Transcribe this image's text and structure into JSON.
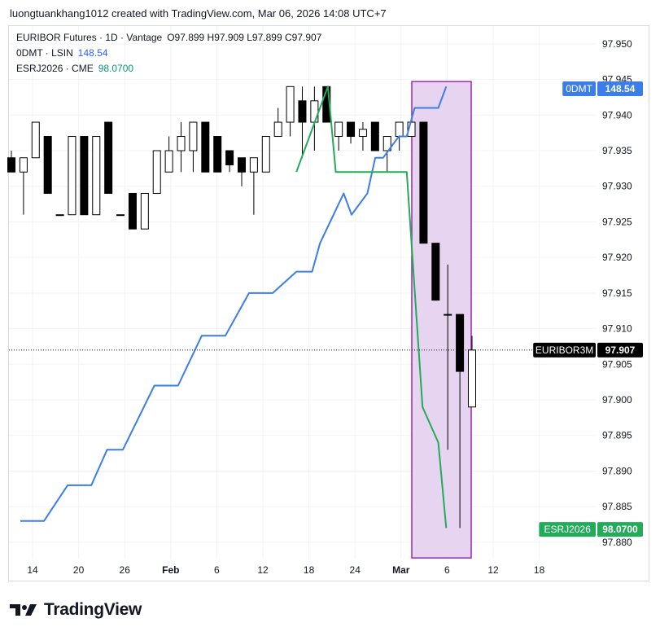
{
  "header": {
    "caption": "luongtuankhang1012 created with TradingView.com, Mar 06, 2026 14:08 UTC+7"
  },
  "legend": [
    {
      "label": "EURIBOR Futures · 1D · Vantage",
      "value": "O97.899  H97.909  L97.899  C97.907",
      "value_color": "#131722"
    },
    {
      "label": "0DMT · LSIN",
      "value": "148.54",
      "value_color": "#2962ff"
    },
    {
      "label": "ESRJ2026 · CME",
      "value": "98.0700",
      "value_color": "#089981"
    }
  ],
  "badges": [
    {
      "symbol": "0DMT",
      "value": "148.54",
      "color": "#3b7de9",
      "price": 97.9437
    },
    {
      "symbol": "EURIBOR3M",
      "value": "97.907",
      "color": "#000000",
      "price": 97.907
    },
    {
      "symbol": "ESRJ2026",
      "value": "98.0700",
      "color": "#22ab58",
      "price": 97.8818
    }
  ],
  "brand": {
    "name": "TradingView",
    "logo_icon": "tradingview-logo-icon"
  },
  "chart_data": {
    "type": "candlestick",
    "title": "",
    "y_axis": {
      "ticks": [
        "97.950",
        "97.945",
        "97.940",
        "97.935",
        "97.930",
        "97.925",
        "97.920",
        "97.915",
        "97.910",
        "97.905",
        "97.900",
        "97.895",
        "97.890",
        "97.885",
        "97.880"
      ],
      "range": [
        97.8777,
        97.9525
      ]
    },
    "x_axis": {
      "ticks": [
        "14",
        "20",
        "26",
        "Feb",
        "6",
        "12",
        "18",
        "24",
        "Mar",
        "6",
        "12",
        "18"
      ],
      "range_dates": [
        "2026-01-10",
        "2026-03-22"
      ]
    },
    "highlight": {
      "from": "2026-02-28",
      "to": "2026-03-06",
      "fill": "#e3cdee",
      "stroke": "#9c27b0",
      "price_top": 97.9447,
      "price_bottom": 97.8778
    },
    "last_price_line": 97.907,
    "candles": [
      {
        "t": "2026-01-10",
        "o": 97.934,
        "h": 97.935,
        "l": 97.932,
        "c": 97.932
      },
      {
        "t": "2026-01-11",
        "o": 97.932,
        "h": 97.934,
        "l": 97.926,
        "c": 97.934
      },
      {
        "t": "2026-01-12",
        "o": 97.934,
        "h": 97.939,
        "l": 97.934,
        "c": 97.939
      },
      {
        "t": "2026-01-13",
        "o": 97.937,
        "h": 97.937,
        "l": 97.929,
        "c": 97.929
      },
      {
        "t": "2026-01-14",
        "o": 97.926,
        "h": 97.926,
        "l": 97.926,
        "c": 97.926
      },
      {
        "t": "2026-01-15",
        "o": 97.926,
        "h": 97.937,
        "l": 97.926,
        "c": 97.937
      },
      {
        "t": "2026-01-16",
        "o": 97.937,
        "h": 97.937,
        "l": 97.926,
        "c": 97.926
      },
      {
        "t": "2026-01-17",
        "o": 97.926,
        "h": 97.937,
        "l": 97.926,
        "c": 97.937
      },
      {
        "t": "2026-01-18",
        "o": 97.939,
        "h": 97.939,
        "l": 97.929,
        "c": 97.929
      },
      {
        "t": "2026-01-19",
        "o": 97.926,
        "h": 97.926,
        "l": 97.926,
        "c": 97.926
      },
      {
        "t": "2026-01-20",
        "o": 97.929,
        "h": 97.929,
        "l": 97.924,
        "c": 97.924
      },
      {
        "t": "2026-01-21",
        "o": 97.924,
        "h": 97.929,
        "l": 97.924,
        "c": 97.929
      },
      {
        "t": "2026-01-22",
        "o": 97.929,
        "h": 97.935,
        "l": 97.929,
        "c": 97.935
      },
      {
        "t": "2026-01-23",
        "o": 97.932,
        "h": 97.937,
        "l": 97.932,
        "c": 97.935
      },
      {
        "t": "2026-01-24",
        "o": 97.935,
        "h": 97.939,
        "l": 97.932,
        "c": 97.937
      },
      {
        "t": "2026-01-25",
        "o": 97.935,
        "h": 97.939,
        "l": 97.932,
        "c": 97.939
      },
      {
        "t": "2026-01-26",
        "o": 97.939,
        "h": 97.939,
        "l": 97.932,
        "c": 97.932
      },
      {
        "t": "2026-01-27",
        "o": 97.937,
        "h": 97.937,
        "l": 97.932,
        "c": 97.932
      },
      {
        "t": "2026-01-28",
        "o": 97.935,
        "h": 97.935,
        "l": 97.932,
        "c": 97.933
      },
      {
        "t": "2026-01-29",
        "o": 97.934,
        "h": 97.934,
        "l": 97.93,
        "c": 97.932
      },
      {
        "t": "2026-01-30",
        "o": 97.932,
        "h": 97.934,
        "l": 97.926,
        "c": 97.934
      },
      {
        "t": "2026-01-31",
        "o": 97.932,
        "h": 97.937,
        "l": 97.932,
        "c": 97.937
      },
      {
        "t": "2026-02-01",
        "o": 97.937,
        "h": 97.941,
        "l": 97.937,
        "c": 97.939
      },
      {
        "t": "2026-02-02",
        "o": 97.939,
        "h": 97.944,
        "l": 97.937,
        "c": 97.944
      },
      {
        "t": "2026-02-03",
        "o": 97.942,
        "h": 97.944,
        "l": 97.934,
        "c": 97.939
      },
      {
        "t": "2026-02-04",
        "o": 97.939,
        "h": 97.944,
        "l": 97.935,
        "c": 97.942
      },
      {
        "t": "2026-02-05",
        "o": 97.944,
        "h": 97.944,
        "l": 97.939,
        "c": 97.939
      },
      {
        "t": "2026-02-06",
        "o": 97.937,
        "h": 97.939,
        "l": 97.935,
        "c": 97.939
      },
      {
        "t": "2026-02-07",
        "o": 97.939,
        "h": 97.939,
        "l": 97.936,
        "c": 97.937
      },
      {
        "t": "2026-02-08",
        "o": 97.937,
        "h": 97.939,
        "l": 97.935,
        "c": 97.938
      },
      {
        "t": "2026-02-09",
        "o": 97.939,
        "h": 97.939,
        "l": 97.935,
        "c": 97.935
      },
      {
        "t": "2026-02-10",
        "o": 97.935,
        "h": 97.937,
        "l": 97.932,
        "c": 97.937
      },
      {
        "t": "2026-02-11",
        "o": 97.937,
        "h": 97.939,
        "l": 97.935,
        "c": 97.939
      },
      {
        "t": "2026-02-12",
        "o": 97.937,
        "h": 97.939,
        "l": 97.937,
        "c": 97.939
      },
      {
        "t": "2026-02-13",
        "o": 97.939,
        "h": 97.939,
        "l": 97.922,
        "c": 97.922
      },
      {
        "t": "2026-02-14",
        "o": 97.922,
        "h": 97.922,
        "l": 97.914,
        "c": 97.914
      },
      {
        "t": "2026-02-15",
        "o": 97.912,
        "h": 97.919,
        "l": 97.893,
        "c": 97.912
      },
      {
        "t": "2026-02-16",
        "o": 97.912,
        "h": 97.912,
        "l": 97.882,
        "c": 97.904
      },
      {
        "t": "2026-02-17",
        "o": 97.899,
        "h": 97.909,
        "l": 97.899,
        "c": 97.907
      }
    ],
    "series": [
      {
        "name": "0DMT · LSIN",
        "color": "#3b7de9",
        "points": [
          {
            "t": "2026-01-10",
            "y": 97.883
          },
          {
            "t": "2026-01-13",
            "y": 97.883
          },
          {
            "t": "2026-01-16",
            "y": 97.888
          },
          {
            "t": "2026-01-19",
            "y": 97.888
          },
          {
            "t": "2026-01-21",
            "y": 97.893
          },
          {
            "t": "2026-01-23",
            "y": 97.893
          },
          {
            "t": "2026-01-27",
            "y": 97.902
          },
          {
            "t": "2026-01-30",
            "y": 97.902
          },
          {
            "t": "2026-02-02",
            "y": 97.909
          },
          {
            "t": "2026-02-05",
            "y": 97.909
          },
          {
            "t": "2026-02-08",
            "y": 97.915
          },
          {
            "t": "2026-02-11",
            "y": 97.915
          },
          {
            "t": "2026-02-14",
            "y": 97.918
          },
          {
            "t": "2026-02-16",
            "y": 97.918
          },
          {
            "t": "2026-02-17",
            "y": 97.922
          },
          {
            "t": "2026-02-20",
            "y": 97.929
          },
          {
            "t": "2026-02-21",
            "y": 97.926
          },
          {
            "t": "2026-02-23",
            "y": 97.929
          },
          {
            "t": "2026-02-24",
            "y": 97.934
          },
          {
            "t": "2026-02-25",
            "y": 97.934
          },
          {
            "t": "2026-02-27",
            "y": 97.937
          },
          {
            "t": "2026-02-28",
            "y": 97.937
          },
          {
            "t": "2026-03-01",
            "y": 97.941
          },
          {
            "t": "2026-03-04",
            "y": 97.941
          },
          {
            "t": "2026-03-05",
            "y": 97.944
          }
        ]
      },
      {
        "name": "ESRJ2026 · CME",
        "color": "#22ab58",
        "points": [
          {
            "t": "2026-02-14",
            "y": 97.932
          },
          {
            "t": "2026-02-18",
            "y": 97.944
          },
          {
            "t": "2026-02-19",
            "y": 97.932
          },
          {
            "t": "2026-02-28",
            "y": 97.932
          },
          {
            "t": "2026-03-02",
            "y": 97.899
          },
          {
            "t": "2026-03-04",
            "y": 97.894
          },
          {
            "t": "2026-03-05",
            "y": 97.882
          }
        ]
      }
    ]
  }
}
